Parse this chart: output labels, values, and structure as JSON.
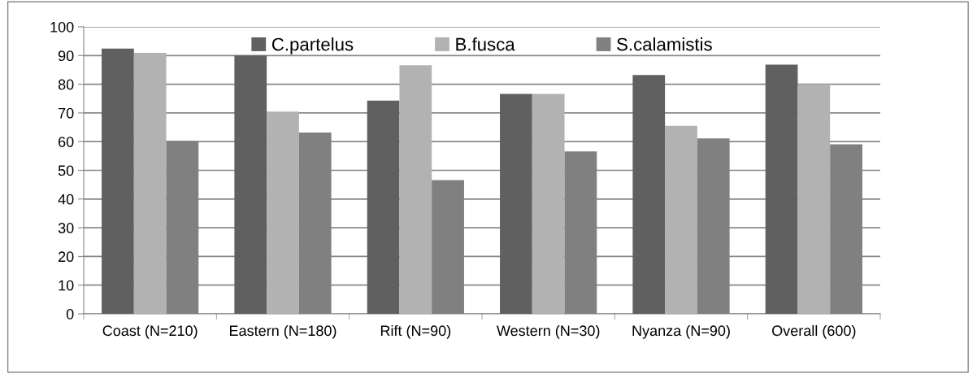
{
  "chart_data": {
    "type": "bar",
    "categories": [
      "Coast (N=210)",
      "Eastern (N=180)",
      "Rift (N=90)",
      "Western (N=30)",
      "Nyanza (N=90)",
      "Overall (600)"
    ],
    "series": [
      {
        "name": "C.partelus",
        "color": "#606060",
        "values": [
          92.4,
          90,
          74.3,
          76.6,
          83.2,
          86.8
        ]
      },
      {
        "name": "B.fusca",
        "color": "#b2b2b2",
        "values": [
          90.9,
          70.5,
          86.6,
          76.6,
          65.5,
          80
        ]
      },
      {
        "name": "S.calamistis",
        "color": "#808080",
        "values": [
          60.3,
          63.2,
          46.6,
          56.6,
          61.1,
          59.1
        ]
      }
    ],
    "ylim": [
      0,
      100
    ],
    "yticks": [
      0,
      10,
      20,
      30,
      40,
      50,
      60,
      70,
      80,
      90,
      100
    ],
    "grid": "y",
    "legend": "top"
  }
}
